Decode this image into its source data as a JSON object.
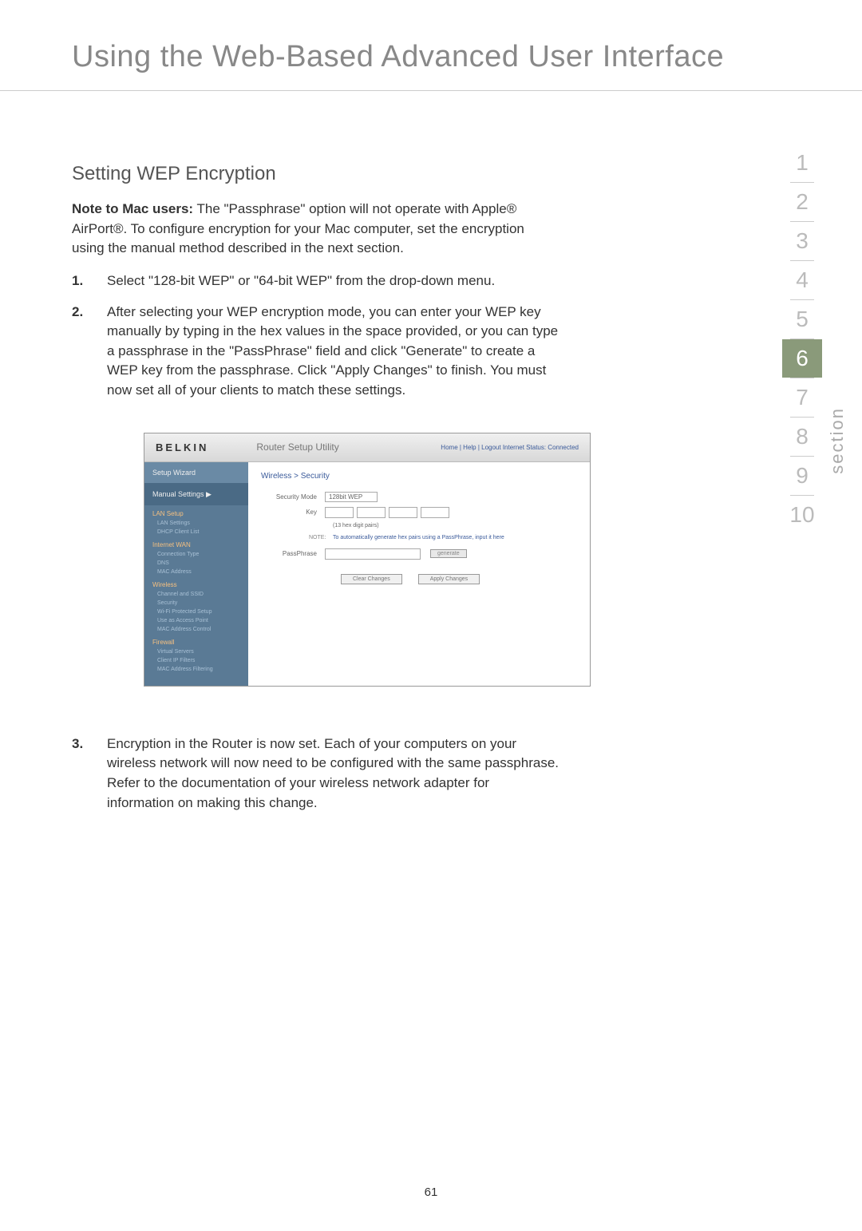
{
  "header": {
    "title": "Using the Web-Based Advanced User Interface"
  },
  "section": {
    "heading": "Setting WEP Encryption",
    "note_label": "Note to Mac users:",
    "note_text": " The \"Passphrase\" option will not operate with Apple® AirPort®. To configure encryption for your Mac computer, set the encryption using the manual method described in the next section.",
    "steps": [
      {
        "num": "1.",
        "text": "Select \"128-bit WEP\" or \"64-bit WEP\" from the drop-down menu."
      },
      {
        "num": "2.",
        "text": "After selecting your WEP encryption mode, you can enter your WEP key manually by typing in the hex values in the space provided, or you can type a passphrase in the \"PassPhrase\" field and click \"Generate\" to create a WEP key from the passphrase. Click \"Apply Changes\" to finish. You must now set all of your clients to match these settings."
      },
      {
        "num": "3.",
        "text": "Encryption in the Router is now set. Each of your computers on your wireless network will now need to be configured with the same passphrase. Refer to the documentation of your wireless network adapter for information on making this change."
      }
    ]
  },
  "screenshot": {
    "logo": "BELKIN",
    "utility": "Router Setup Utility",
    "toplinks": "Home | Help | Logout   Internet Status: Connected",
    "wizard": "Setup Wizard",
    "manual": "Manual Settings ▶",
    "sidebar_groups": [
      {
        "title": "LAN Setup",
        "items": [
          "LAN Settings",
          "DHCP Client List"
        ]
      },
      {
        "title": "Internet WAN",
        "items": [
          "Connection Type",
          "DNS",
          "MAC Address"
        ]
      },
      {
        "title": "Wireless",
        "items": [
          "Channel and SSID",
          "Security",
          "Wi-Fi Protected Setup",
          "Use as Access Point",
          "MAC Address Control"
        ]
      },
      {
        "title": "Firewall",
        "items": [
          "Virtual Servers",
          "Client IP Filters",
          "MAC Address Filtering"
        ]
      }
    ],
    "breadcrumb": "Wireless > Security",
    "security_mode_label": "Security Mode",
    "security_mode_value": "128bit WEP",
    "key_label": "Key",
    "hex_hint": "(13 hex digit pairs)",
    "note_label": "NOTE:",
    "note_text": "To automatically generate hex pairs using a PassPhrase, input it here",
    "passphrase_label": "PassPhrase",
    "generate_btn": "generate",
    "clear_btn": "Clear Changes",
    "apply_btn": "Apply Changes"
  },
  "nav": {
    "items": [
      "1",
      "2",
      "3",
      "4",
      "5",
      "6",
      "7",
      "8",
      "9",
      "10"
    ],
    "active_index": 5,
    "label": "section"
  },
  "page_number": "61"
}
